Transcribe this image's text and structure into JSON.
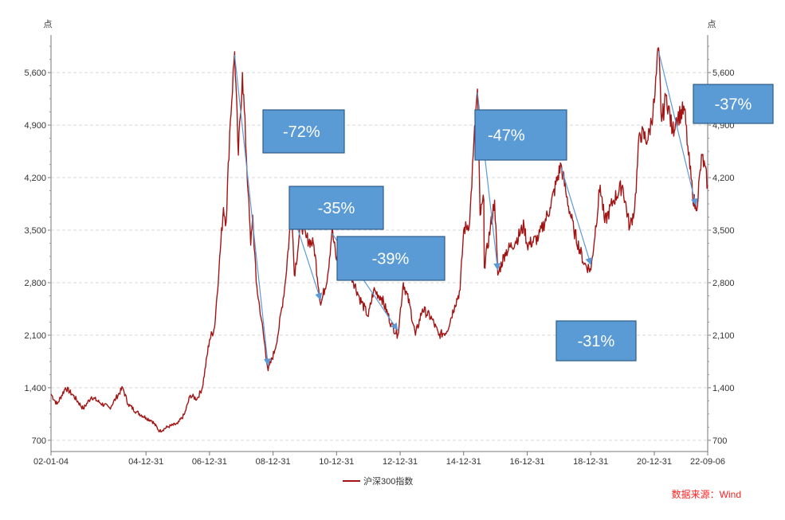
{
  "chart_data": {
    "type": "line",
    "ylabel": "点",
    "ylabel_right": "点",
    "ylim": [
      550,
      6100
    ],
    "yticks": [
      700,
      1400,
      2100,
      2800,
      3500,
      4200,
      4900,
      5600
    ],
    "ytick_labels": [
      "700",
      "1,400",
      "2,100",
      "2,800",
      "3,500",
      "4,200",
      "4,900",
      "5,600"
    ],
    "x_range": [
      "2002-01-04",
      "2022-09-06"
    ],
    "xticks": [
      {
        "date": "2002-01-04",
        "label": "02-01-04"
      },
      {
        "date": "2004-12-31",
        "label": "04-12-31"
      },
      {
        "date": "2006-12-31",
        "label": "06-12-31"
      },
      {
        "date": "2008-12-31",
        "label": "08-12-31"
      },
      {
        "date": "2010-12-31",
        "label": "10-12-31"
      },
      {
        "date": "2012-12-31",
        "label": "12-12-31"
      },
      {
        "date": "2014-12-31",
        "label": "14-12-31"
      },
      {
        "date": "2016-12-31",
        "label": "16-12-31"
      },
      {
        "date": "2018-12-31",
        "label": "18-12-31"
      },
      {
        "date": "2020-12-31",
        "label": "20-12-31"
      },
      {
        "date": "2022-09-06",
        "label": "22-09-06"
      }
    ],
    "grid": true,
    "legend_position": "bottom-center",
    "series": [
      {
        "name": "沪深300指数",
        "color": "#a31515",
        "points": [
          [
            "2002-01-04",
            1316
          ],
          [
            "2002-03-15",
            1180
          ],
          [
            "2002-06-20",
            1400
          ],
          [
            "2002-09-15",
            1300
          ],
          [
            "2003-01-10",
            1120
          ],
          [
            "2003-04-15",
            1280
          ],
          [
            "2003-07-20",
            1200
          ],
          [
            "2003-11-10",
            1130
          ],
          [
            "2004-01-20",
            1260
          ],
          [
            "2004-04-07",
            1400
          ],
          [
            "2004-06-10",
            1180
          ],
          [
            "2004-09-10",
            1080
          ],
          [
            "2004-12-31",
            1000
          ],
          [
            "2005-03-10",
            960
          ],
          [
            "2005-06-06",
            820
          ],
          [
            "2005-09-10",
            880
          ],
          [
            "2005-12-31",
            920
          ],
          [
            "2006-03-20",
            1050
          ],
          [
            "2006-05-25",
            1300
          ],
          [
            "2006-08-10",
            1250
          ],
          [
            "2006-10-10",
            1400
          ],
          [
            "2006-12-31",
            2040
          ],
          [
            "2007-02-27",
            2200
          ],
          [
            "2007-04-20",
            3000
          ],
          [
            "2007-06-10",
            3800
          ],
          [
            "2007-07-10",
            3600
          ],
          [
            "2007-08-20",
            4800
          ],
          [
            "2007-10-16",
            5877
          ],
          [
            "2007-11-28",
            4500
          ],
          [
            "2008-01-14",
            5600
          ],
          [
            "2008-03-20",
            4000
          ],
          [
            "2008-04-18",
            3300
          ],
          [
            "2008-05-10",
            3700
          ],
          [
            "2008-06-20",
            2800
          ],
          [
            "2008-08-20",
            2300
          ],
          [
            "2008-11-04",
            1627
          ],
          [
            "2009-01-20",
            1900
          ],
          [
            "2009-03-10",
            2200
          ],
          [
            "2009-05-20",
            2800
          ],
          [
            "2009-08-04",
            3804
          ],
          [
            "2009-09-01",
            2900
          ],
          [
            "2009-11-20",
            3600
          ],
          [
            "2010-01-15",
            3400
          ],
          [
            "2010-04-15",
            3300
          ],
          [
            "2010-07-02",
            2500
          ],
          [
            "2010-09-20",
            2900
          ],
          [
            "2010-11-09",
            3500
          ],
          [
            "2010-12-31",
            3100
          ],
          [
            "2011-04-18",
            3300
          ],
          [
            "2011-06-20",
            2900
          ],
          [
            "2011-09-20",
            2600
          ],
          [
            "2011-12-31",
            2350
          ],
          [
            "2012-03-01",
            2700
          ],
          [
            "2012-06-01",
            2600
          ],
          [
            "2012-09-20",
            2250
          ],
          [
            "2012-12-04",
            2100
          ],
          [
            "2013-02-06",
            2800
          ],
          [
            "2013-04-20",
            2500
          ],
          [
            "2013-06-25",
            2100
          ],
          [
            "2013-09-15",
            2450
          ],
          [
            "2013-12-31",
            2320
          ],
          [
            "2014-03-20",
            2100
          ],
          [
            "2014-06-20",
            2150
          ],
          [
            "2014-09-20",
            2500
          ],
          [
            "2014-11-20",
            2700
          ],
          [
            "2014-12-31",
            3500
          ],
          [
            "2015-03-10",
            3600
          ],
          [
            "2015-04-20",
            4500
          ],
          [
            "2015-06-08",
            5380
          ],
          [
            "2015-07-08",
            3700
          ],
          [
            "2015-08-20",
            3900
          ],
          [
            "2015-08-26",
            3000
          ],
          [
            "2015-12-22",
            3900
          ],
          [
            "2016-01-28",
            2900
          ],
          [
            "2016-04-20",
            3200
          ],
          [
            "2016-08-20",
            3350
          ],
          [
            "2016-11-25",
            3560
          ],
          [
            "2016-12-31",
            3300
          ],
          [
            "2017-05-10",
            3400
          ],
          [
            "2017-09-20",
            3800
          ],
          [
            "2018-01-24",
            4380
          ],
          [
            "2018-03-20",
            4000
          ],
          [
            "2018-06-20",
            3500
          ],
          [
            "2018-10-18",
            3050
          ],
          [
            "2019-01-03",
            2970
          ],
          [
            "2019-04-19",
            4100
          ],
          [
            "2019-06-10",
            3600
          ],
          [
            "2019-09-20",
            3900
          ],
          [
            "2019-12-31",
            4100
          ],
          [
            "2020-03-23",
            3530
          ],
          [
            "2020-05-20",
            3800
          ],
          [
            "2020-07-15",
            4800
          ],
          [
            "2020-10-20",
            4700
          ],
          [
            "2020-12-31",
            5200
          ],
          [
            "2021-02-18",
            5930
          ],
          [
            "2021-03-25",
            4950
          ],
          [
            "2021-05-20",
            5300
          ],
          [
            "2021-07-28",
            4800
          ],
          [
            "2021-09-10",
            5000
          ],
          [
            "2021-12-13",
            5100
          ],
          [
            "2022-01-28",
            4500
          ],
          [
            "2022-03-15",
            4000
          ],
          [
            "2022-04-26",
            3760
          ],
          [
            "2022-07-04",
            4500
          ],
          [
            "2022-09-06",
            4100
          ]
        ]
      }
    ],
    "drawdowns": [
      {
        "label": "-72%",
        "from": [
          "2007-10-16",
          5877
        ],
        "to": [
          "2008-11-04",
          1627
        ]
      },
      {
        "label": "-35%",
        "from": [
          "2009-08-04",
          3804
        ],
        "to": [
          "2010-07-02",
          2500
        ]
      },
      {
        "label": "-39%",
        "from": [
          "2010-11-09",
          3500
        ],
        "to": [
          "2012-12-04",
          2100
        ]
      },
      {
        "label": "-47%",
        "from": [
          "2015-06-08",
          5380
        ],
        "to": [
          "2016-01-28",
          2900
        ]
      },
      {
        "label": "-31%",
        "from": [
          "2018-01-24",
          4380
        ],
        "to": [
          "2019-01-03",
          2970
        ]
      },
      {
        "label": "-37%",
        "from": [
          "2021-02-18",
          5930
        ],
        "to": [
          "2022-04-26",
          3760
        ]
      }
    ],
    "callout_color": "#5b9bd5",
    "arrow_color": "#5b9bd5",
    "source_text": "数据来源：Wind",
    "source_color": "#ff2020"
  }
}
